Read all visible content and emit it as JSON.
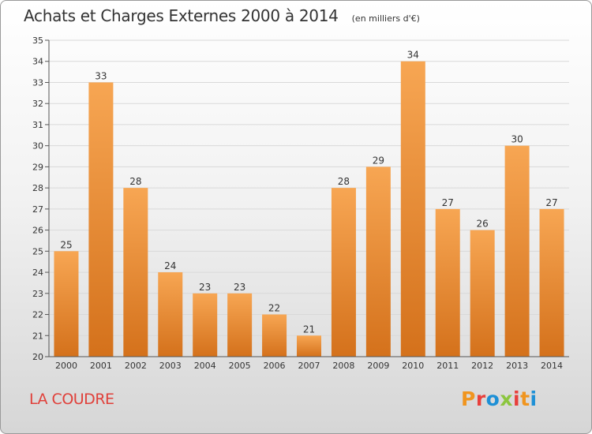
{
  "header": {
    "title": "Achats et Charges Externes 2000 à 2014",
    "unit": "(en milliers d'€)"
  },
  "footer": {
    "commune": "LA COUDRE",
    "logo_text": "Proxiti",
    "logo_colors": [
      "#f0951f",
      "#e8403c",
      "#1e90d6",
      "#8cc63f",
      "#e8403c",
      "#f0951f",
      "#1e90d6"
    ]
  },
  "colors": {
    "bar_light": "#f7a653",
    "bar_dark": "#d4711b",
    "title": "#333333",
    "commune": "#e0403a"
  },
  "chart_data": {
    "type": "bar",
    "categories": [
      "2000",
      "2001",
      "2002",
      "2003",
      "2004",
      "2005",
      "2006",
      "2007",
      "2008",
      "2009",
      "2010",
      "2011",
      "2012",
      "2013",
      "2014"
    ],
    "values": [
      25,
      33,
      28,
      24,
      23,
      23,
      22,
      21,
      28,
      29,
      34,
      27,
      26,
      30,
      27
    ],
    "ylim": [
      20,
      35
    ],
    "yticks": [
      20,
      21,
      22,
      23,
      24,
      25,
      26,
      27,
      28,
      29,
      30,
      31,
      32,
      33,
      34,
      35
    ],
    "grid": true,
    "xlabel": "",
    "ylabel": ""
  }
}
